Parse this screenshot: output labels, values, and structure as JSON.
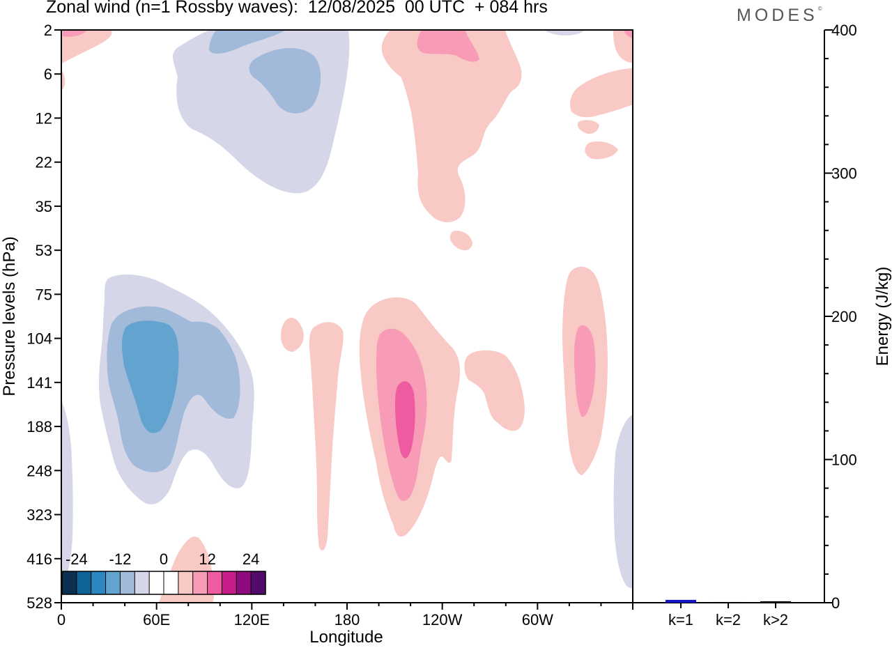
{
  "title": "Zonal wind (n=1 Rossby waves):  12/08/2025  00 UTC  + 084 hrs",
  "brand": "MODES",
  "brand_mark": "©",
  "chart_data": [
    {
      "type": "heatmap",
      "name": "zonal-wind-section",
      "xlabel": "Longitude",
      "ylabel": "Pressure levels (hPa)",
      "x_ticks": [
        "0",
        "60E",
        "120E",
        "180",
        "120W",
        "60W"
      ],
      "y_ticks": [
        "2",
        "6",
        "12",
        "22",
        "35",
        "53",
        "75",
        "104",
        "141",
        "188",
        "248",
        "323",
        "416",
        "528"
      ],
      "colorbar": {
        "labels": [
          "-24",
          "-12",
          "0",
          "12",
          "24"
        ],
        "colors": [
          "#0b2f4f",
          "#0e6399",
          "#2d87c0",
          "#62a3cf",
          "#a2bad9",
          "#d5d6e8",
          "#ffffff",
          "#ffffff",
          "#f9c9c5",
          "#f89bb7",
          "#ef5ba0",
          "#c71d8a",
          "#8d0b7e",
          "#520a6b"
        ]
      }
    },
    {
      "type": "bar",
      "name": "energy-by-wavenumber",
      "categories": [
        "k=1",
        "k=2",
        "k>2"
      ],
      "values": [
        2,
        0.5,
        1
      ],
      "bar_colors": [
        "#1515c8",
        "#000000",
        "#000000"
      ],
      "ylabel": "Energy (J/kg)",
      "y_ticks": [
        "0",
        "100",
        "200",
        "300",
        "400"
      ],
      "ylim": [
        0,
        400
      ]
    }
  ]
}
